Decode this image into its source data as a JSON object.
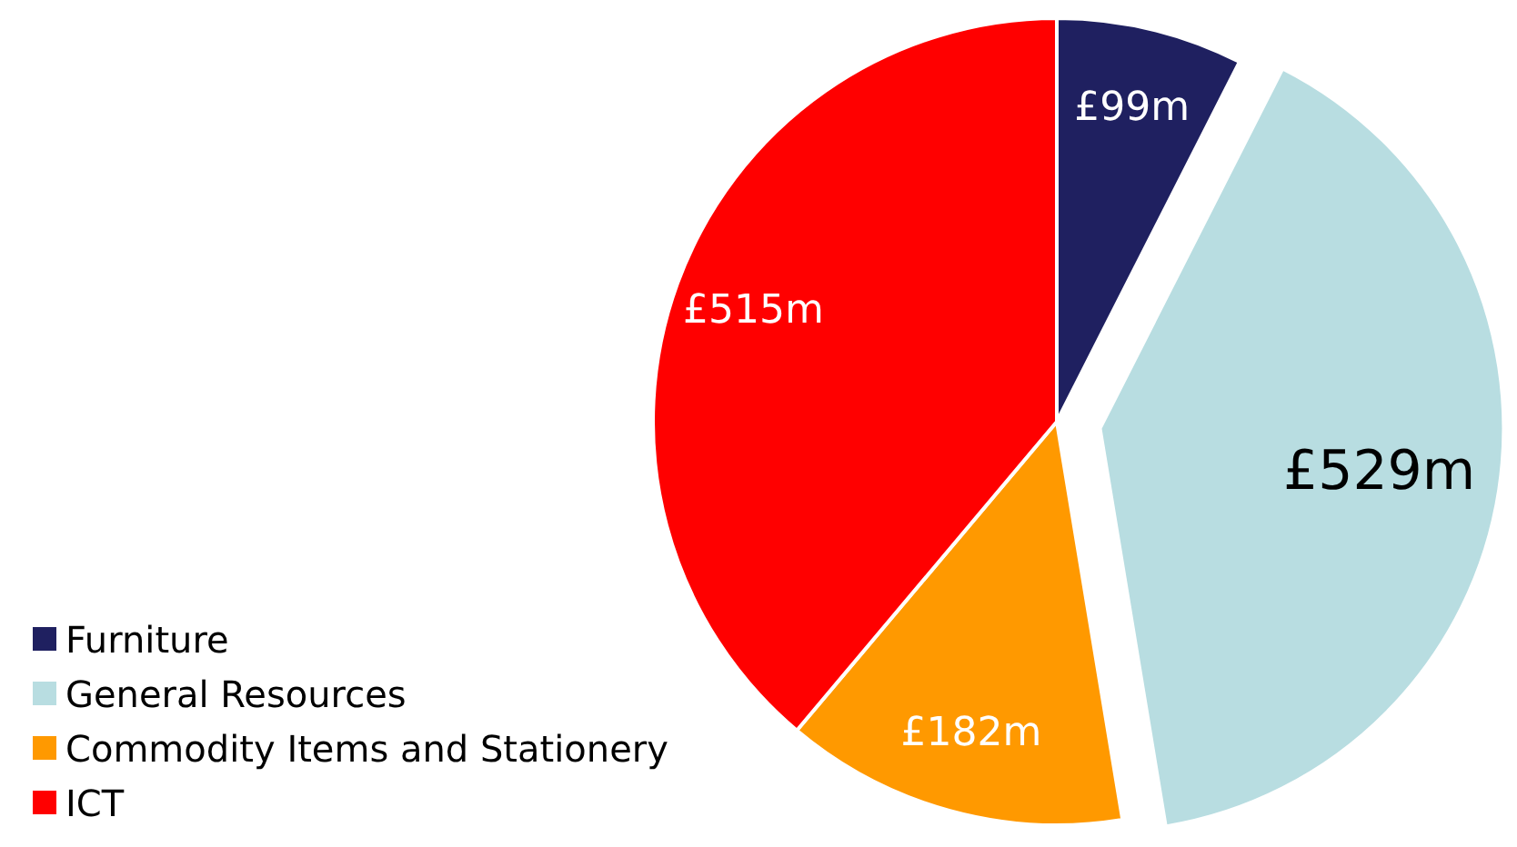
{
  "chart_data": {
    "type": "pie",
    "categories": [
      "Furniture",
      "General Resources",
      "Commodity Items and Stationery",
      "ICT"
    ],
    "values": [
      99,
      529,
      182,
      515
    ],
    "value_labels": [
      "£99m",
      "£529m",
      "£182m",
      "£515m"
    ],
    "colors": [
      "#1f2060",
      "#b8dde1",
      "#ff9900",
      "#ff0000"
    ],
    "legend": "bottom left"
  }
}
